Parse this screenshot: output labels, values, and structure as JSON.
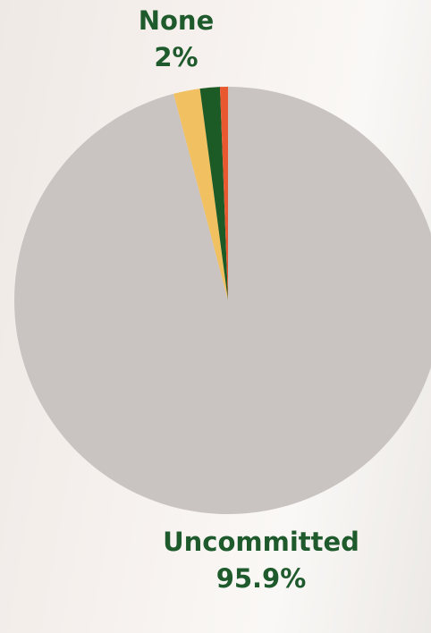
{
  "chart_data": {
    "type": "pie",
    "categories": [
      "Uncommitted",
      "None",
      null,
      null
    ],
    "values": [
      95.9,
      2,
      1.5,
      0.6
    ],
    "value_labels": [
      "95.9%",
      "2%",
      null,
      null
    ],
    "colors": [
      "#c9c4c2",
      "#f1c060",
      "#1c5a26",
      "#e9582f"
    ],
    "start_angle": 0,
    "direction": "clockwise"
  }
}
